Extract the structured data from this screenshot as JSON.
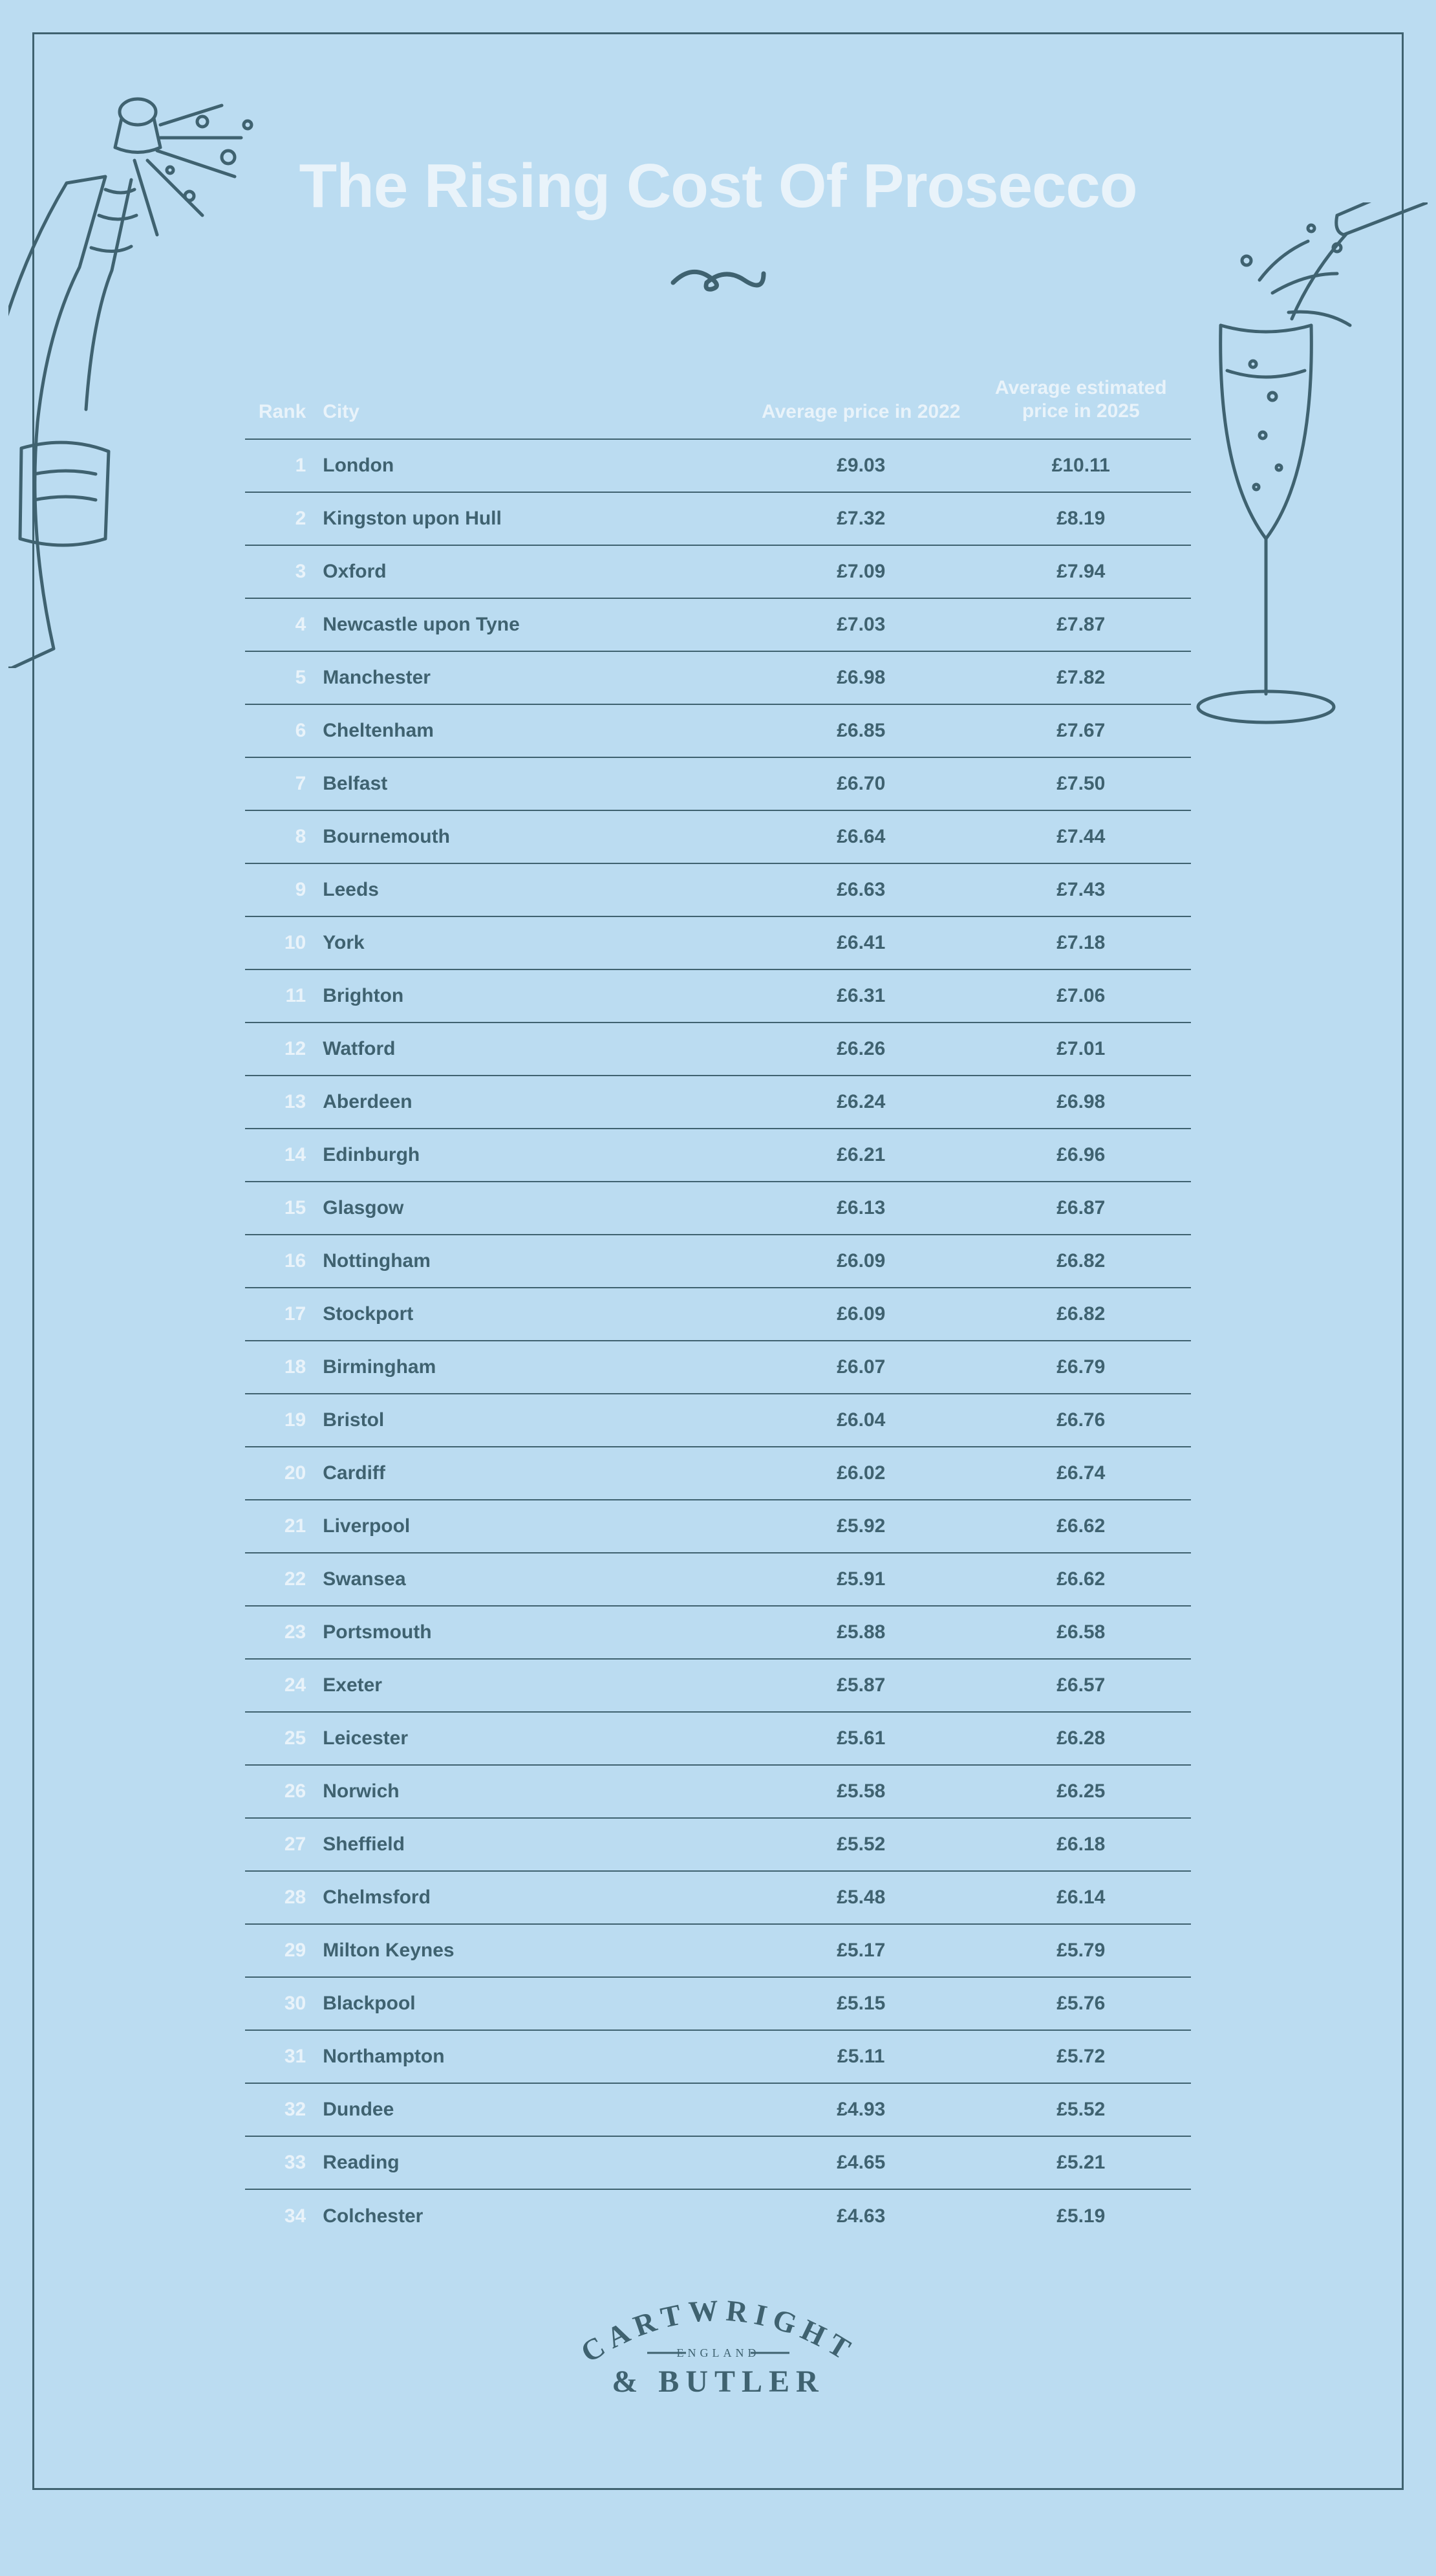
{
  "title": "The Rising Cost Of Prosecco",
  "colors": {
    "page_bg": "#bbdcf1",
    "line": "#3f6270",
    "ink": "#3f6270",
    "pale": "#e9f3fa"
  },
  "columns": {
    "rank": "Rank",
    "city": "City",
    "price_2022": "Average price in 2022",
    "price_2025": "Average estimated price in 2025",
    "price_2025_l1": "Average estimated",
    "price_2025_l2": "price in 2025"
  },
  "rows": [
    {
      "rank": "1",
      "city": "London",
      "p22": "£9.03",
      "p25": "£10.11"
    },
    {
      "rank": "2",
      "city": "Kingston upon Hull",
      "p22": "£7.32",
      "p25": "£8.19"
    },
    {
      "rank": "3",
      "city": "Oxford",
      "p22": "£7.09",
      "p25": "£7.94"
    },
    {
      "rank": "4",
      "city": "Newcastle upon Tyne",
      "p22": "£7.03",
      "p25": "£7.87"
    },
    {
      "rank": "5",
      "city": "Manchester",
      "p22": "£6.98",
      "p25": "£7.82"
    },
    {
      "rank": "6",
      "city": "Cheltenham",
      "p22": "£6.85",
      "p25": "£7.67"
    },
    {
      "rank": "7",
      "city": "Belfast",
      "p22": "£6.70",
      "p25": "£7.50"
    },
    {
      "rank": "8",
      "city": "Bournemouth",
      "p22": "£6.64",
      "p25": "£7.44"
    },
    {
      "rank": "9",
      "city": "Leeds",
      "p22": "£6.63",
      "p25": "£7.43"
    },
    {
      "rank": "10",
      "city": "York",
      "p22": "£6.41",
      "p25": "£7.18"
    },
    {
      "rank": "11",
      "city": "Brighton",
      "p22": "£6.31",
      "p25": "£7.06"
    },
    {
      "rank": "12",
      "city": "Watford",
      "p22": "£6.26",
      "p25": "£7.01"
    },
    {
      "rank": "13",
      "city": "Aberdeen",
      "p22": "£6.24",
      "p25": "£6.98"
    },
    {
      "rank": "14",
      "city": "Edinburgh",
      "p22": "£6.21",
      "p25": "£6.96"
    },
    {
      "rank": "15",
      "city": "Glasgow",
      "p22": "£6.13",
      "p25": "£6.87"
    },
    {
      "rank": "16",
      "city": "Nottingham",
      "p22": "£6.09",
      "p25": "£6.82"
    },
    {
      "rank": "17",
      "city": "Stockport",
      "p22": "£6.09",
      "p25": "£6.82"
    },
    {
      "rank": "18",
      "city": "Birmingham",
      "p22": "£6.07",
      "p25": "£6.79"
    },
    {
      "rank": "19",
      "city": "Bristol",
      "p22": "£6.04",
      "p25": "£6.76"
    },
    {
      "rank": "20",
      "city": "Cardiff",
      "p22": "£6.02",
      "p25": "£6.74"
    },
    {
      "rank": "21",
      "city": "Liverpool",
      "p22": "£5.92",
      "p25": "£6.62"
    },
    {
      "rank": "22",
      "city": "Swansea",
      "p22": "£5.91",
      "p25": "£6.62"
    },
    {
      "rank": "23",
      "city": "Portsmouth",
      "p22": "£5.88",
      "p25": "£6.58"
    },
    {
      "rank": "24",
      "city": "Exeter",
      "p22": "£5.87",
      "p25": "£6.57"
    },
    {
      "rank": "25",
      "city": "Leicester",
      "p22": "£5.61",
      "p25": "£6.28"
    },
    {
      "rank": "26",
      "city": "Norwich",
      "p22": "£5.58",
      "p25": "£6.25"
    },
    {
      "rank": "27",
      "city": "Sheffield",
      "p22": "£5.52",
      "p25": "£6.18"
    },
    {
      "rank": "28",
      "city": "Chelmsford",
      "p22": "£5.48",
      "p25": "£6.14"
    },
    {
      "rank": "29",
      "city": "Milton Keynes",
      "p22": "£5.17",
      "p25": "£5.79"
    },
    {
      "rank": "30",
      "city": "Blackpool",
      "p22": "£5.15",
      "p25": "£5.76"
    },
    {
      "rank": "31",
      "city": "Northampton",
      "p22": "£5.11",
      "p25": "£5.72"
    },
    {
      "rank": "32",
      "city": "Dundee",
      "p22": "£4.93",
      "p25": "£5.52"
    },
    {
      "rank": "33",
      "city": "Reading",
      "p22": "£4.65",
      "p25": "£5.21"
    },
    {
      "rank": "34",
      "city": "Colchester",
      "p22": "£4.63",
      "p25": "£5.19"
    }
  ],
  "brand": {
    "line1": "CARTWRIGHT",
    "sub": "ENGLAND",
    "line2": "& BUTLER"
  },
  "icons": {
    "bottle": "champagne-bottle-icon",
    "glass": "champagne-glass-icon",
    "flourish": "flourish-icon"
  }
}
